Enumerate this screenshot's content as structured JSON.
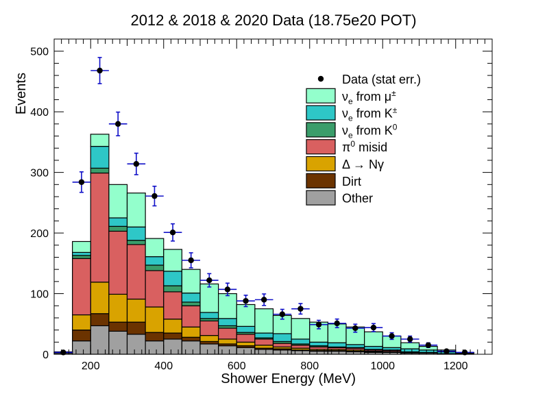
{
  "chart_data": {
    "type": "bar",
    "title": "2012 & 2018 & 2020 Data (18.75e20 POT)",
    "xlabel": "Shower Energy (MeV)",
    "ylabel": "Events",
    "xlim": [
      100,
      1300
    ],
    "ylim": [
      0,
      520
    ],
    "x_ticks": [
      "200",
      "400",
      "600",
      "800",
      "1000",
      "1200"
    ],
    "y_ticks": [
      "0",
      "100",
      "200",
      "300",
      "400",
      "500"
    ],
    "bin_edges": [
      100,
      150,
      200,
      250,
      300,
      350,
      400,
      450,
      500,
      550,
      600,
      650,
      700,
      750,
      800,
      850,
      900,
      950,
      1000,
      1050,
      1100,
      1150,
      1200,
      1250,
      1300
    ],
    "stack_series": [
      {
        "name": "Other",
        "color": "#a0a0a0",
        "values": [
          2,
          22,
          47,
          38,
          33,
          22,
          25,
          22,
          17,
          14,
          11,
          8,
          7,
          6,
          5,
          5,
          4,
          3,
          3,
          2,
          2,
          1,
          1,
          0
        ]
      },
      {
        "name": "Dirt",
        "color": "#6b3300",
        "values": [
          1,
          18,
          20,
          15,
          20,
          14,
          10,
          6,
          4,
          3,
          3,
          2,
          2,
          1,
          1,
          1,
          1,
          1,
          0,
          0,
          0,
          0,
          0,
          0
        ]
      },
      {
        "name": "Δ → Nγ",
        "color": "#d9a300",
        "values": [
          1,
          25,
          52,
          46,
          38,
          42,
          23,
          17,
          10,
          8,
          6,
          5,
          3,
          3,
          2,
          2,
          2,
          1,
          1,
          1,
          0,
          0,
          0,
          0
        ]
      },
      {
        "name": "π⁰ misid",
        "color": "#d96060",
        "values": [
          0,
          93,
          180,
          104,
          90,
          60,
          45,
          35,
          24,
          18,
          13,
          10,
          6,
          5,
          4,
          3,
          3,
          2,
          2,
          1,
          1,
          0,
          0,
          0
        ]
      },
      {
        "name": "νe from K⁰",
        "color": "#3a9d6a",
        "values": [
          0,
          5,
          8,
          8,
          7,
          9,
          10,
          6,
          4,
          4,
          3,
          2,
          3,
          2,
          2,
          1,
          1,
          1,
          1,
          0,
          0,
          0,
          0,
          0
        ]
      },
      {
        "name": "νe from K±",
        "color": "#2ec7c7",
        "values": [
          0,
          5,
          36,
          14,
          22,
          14,
          24,
          15,
          10,
          12,
          10,
          8,
          13,
          8,
          6,
          7,
          5,
          5,
          4,
          5,
          4,
          3,
          1,
          0
        ]
      },
      {
        "name": "νe from μ±",
        "color": "#93ffcc",
        "values": [
          0,
          18,
          20,
          55,
          56,
          30,
          36,
          39,
          47,
          41,
          36,
          40,
          30,
          34,
          33,
          31,
          29,
          24,
          19,
          10,
          6,
          3,
          1,
          0
        ]
      }
    ],
    "data": {
      "name": "Data (stat err.)",
      "x": [
        125,
        175,
        225,
        275,
        325,
        375,
        425,
        475,
        525,
        575,
        625,
        675,
        725,
        775,
        825,
        875,
        925,
        975,
        1025,
        1075,
        1125,
        1175,
        1225
      ],
      "y": [
        3,
        284,
        468,
        380,
        314,
        261,
        201,
        155,
        122,
        107,
        88,
        90,
        66,
        75,
        49,
        51,
        43,
        44,
        30,
        25,
        15,
        5,
        3
      ],
      "xerr": 25,
      "yerr": [
        1.7,
        16.9,
        21.6,
        19.5,
        17.7,
        16.2,
        14.2,
        12.4,
        11.0,
        10.3,
        9.4,
        9.5,
        8.1,
        8.7,
        7.0,
        7.1,
        6.6,
        6.6,
        5.5,
        5.0,
        3.9,
        2.2,
        1.7
      ]
    },
    "legend": {
      "position": "top-right",
      "entries": [
        {
          "label": "Data (stat err.)",
          "color": "#000000",
          "marker": "point"
        },
        {
          "label": "νe from μ±",
          "color": "#93ffcc"
        },
        {
          "label": "νe from K±",
          "color": "#2ec7c7"
        },
        {
          "label": "νe from K0",
          "color": "#3a9d6a"
        },
        {
          "label": "π0 misid",
          "color": "#d96060"
        },
        {
          "label": "Δ → Nγ",
          "color": "#d9a300"
        },
        {
          "label": "Dirt",
          "color": "#6b3300"
        },
        {
          "label": "Other",
          "color": "#a0a0a0"
        }
      ]
    },
    "grid": false,
    "errorbar_color": "#1010c8"
  }
}
